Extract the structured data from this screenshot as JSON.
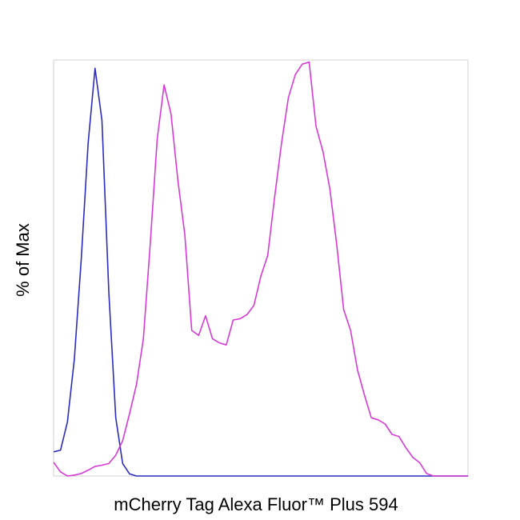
{
  "chart_data": {
    "type": "line",
    "x_label": "mCherry Tag Alexa Fluor™ Plus 594",
    "y_label": "% of Max",
    "ylim": [
      0,
      100
    ],
    "categories": [
      null,
      null,
      null,
      null,
      null,
      null,
      null,
      null,
      null,
      null,
      null,
      null,
      null,
      null,
      null,
      null,
      null,
      null,
      null,
      null,
      null,
      null,
      null,
      null,
      null,
      null,
      null,
      null,
      null,
      null,
      null,
      null,
      null,
      null,
      null,
      null,
      null,
      null,
      null,
      null,
      null,
      null,
      null,
      null,
      null,
      null,
      null,
      null,
      null,
      null,
      null,
      null,
      null,
      null,
      null,
      null,
      null,
      null,
      null,
      null,
      null
    ],
    "series": [
      {
        "color": "#2b2bbf",
        "values": [
          5.8,
          6.2,
          13,
          28,
          52,
          80,
          98,
          85.5,
          44,
          14,
          3,
          0.5,
          0,
          0,
          0,
          0,
          0,
          0,
          0,
          0,
          0,
          0,
          0,
          0,
          0,
          0,
          0,
          0,
          0,
          0,
          0,
          0,
          0,
          0,
          0,
          0,
          0,
          0,
          0,
          0,
          0,
          0,
          0,
          0,
          0,
          0,
          0,
          0,
          0,
          0,
          0,
          0,
          0,
          0,
          0,
          0,
          0,
          0,
          0,
          0,
          0
        ]
      },
      {
        "color": "#d63ad6",
        "values": [
          3.3,
          1,
          0,
          0.2,
          0.6,
          1.4,
          2.3,
          2.6,
          3,
          5,
          8.5,
          15,
          22,
          33,
          56,
          81,
          94,
          87,
          71,
          58,
          35,
          33.8,
          38.5,
          33,
          32,
          31.5,
          37.5,
          37.8,
          38.8,
          41,
          48,
          53,
          67,
          80,
          91,
          96.5,
          99,
          99.5,
          84,
          78,
          69,
          55.5,
          40,
          35,
          25.5,
          19.5,
          14,
          13.5,
          12.5,
          10,
          9.5,
          6.8,
          4.5,
          3.2,
          0.6,
          0,
          0,
          0,
          0,
          0,
          0
        ]
      }
    ]
  }
}
